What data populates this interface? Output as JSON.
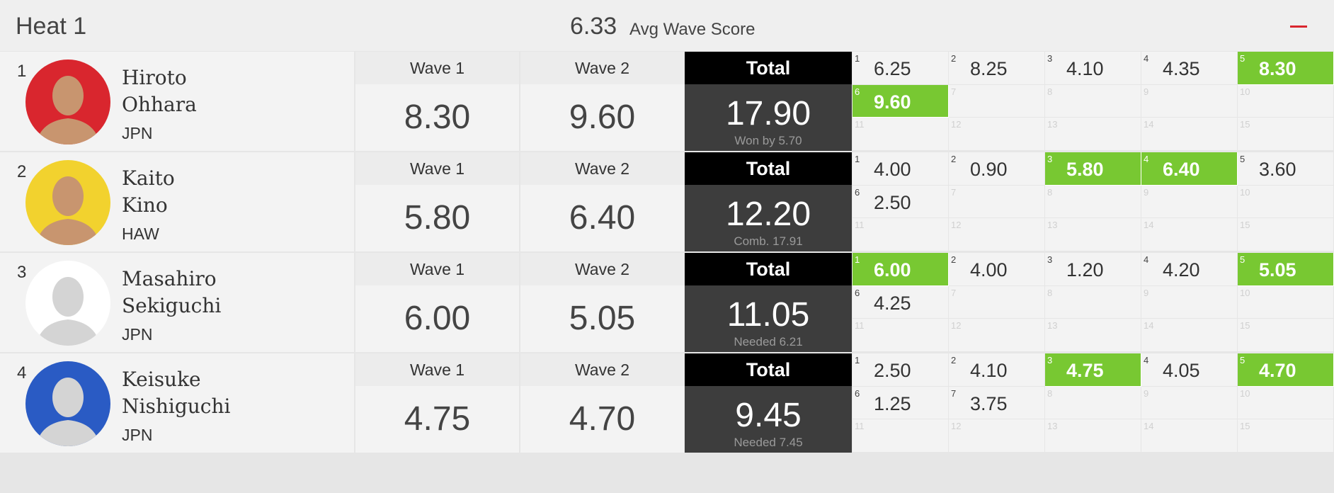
{
  "header": {
    "title": "Heat 1",
    "avg": "6.33",
    "avg_label": "Avg Wave Score"
  },
  "labels": {
    "wave1": "Wave 1",
    "wave2": "Wave 2",
    "total": "Total"
  },
  "slots": [
    1,
    2,
    3,
    4,
    5,
    6,
    7,
    8,
    9,
    10,
    11,
    12,
    13,
    14,
    15
  ],
  "surfers": [
    {
      "rank": "1",
      "first": "Hiroto",
      "last": "Ohhara",
      "country": "JPN",
      "avatar_color": "#d9262e",
      "wave1": "8.30",
      "wave2": "9.60",
      "total": "17.90",
      "note": "Won by 5.70",
      "waves": [
        "6.25",
        "8.25",
        "4.10",
        "4.35",
        "8.30",
        "9.60"
      ],
      "best": [
        5,
        6
      ]
    },
    {
      "rank": "2",
      "first": "Kaito",
      "last": "Kino",
      "country": "HAW",
      "avatar_color": "#f2d22e",
      "wave1": "5.80",
      "wave2": "6.40",
      "total": "12.20",
      "note": "Comb. 17.91",
      "waves": [
        "4.00",
        "0.90",
        "5.80",
        "6.40",
        "3.60",
        "2.50"
      ],
      "best": [
        3,
        4
      ]
    },
    {
      "rank": "3",
      "first": "Masahiro",
      "last": "Sekiguchi",
      "country": "JPN",
      "avatar_color": "#ffffff",
      "wave1": "6.00",
      "wave2": "5.05",
      "total": "11.05",
      "note": "Needed 6.21",
      "waves": [
        "6.00",
        "4.00",
        "1.20",
        "4.20",
        "5.05",
        "4.25"
      ],
      "best": [
        1,
        5
      ]
    },
    {
      "rank": "4",
      "first": "Keisuke",
      "last": "Nishiguchi",
      "country": "JPN",
      "avatar_color": "#2a5bc4",
      "wave1": "4.75",
      "wave2": "4.70",
      "total": "9.45",
      "note": "Needed 7.45",
      "waves": [
        "2.50",
        "4.10",
        "4.75",
        "4.05",
        "4.70",
        "1.25",
        "3.75"
      ],
      "best": [
        3,
        5
      ]
    }
  ]
}
